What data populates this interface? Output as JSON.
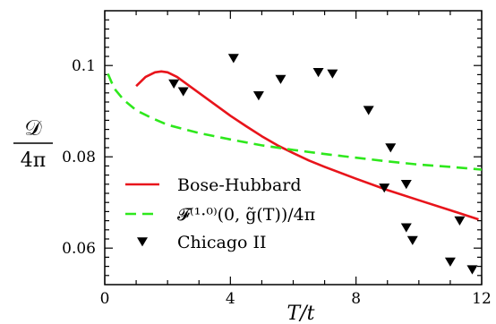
{
  "chart_data": {
    "type": "line",
    "xlabel": "T/t",
    "ylabel_numerator": "𝒟",
    "ylabel_denominator": "4π",
    "xlim": [
      0,
      12
    ],
    "ylim": [
      0.052,
      0.112
    ],
    "x_ticks": [
      0,
      4,
      8,
      12
    ],
    "x_tick_labels": [
      "0",
      "4",
      "8",
      "12"
    ],
    "y_ticks": [
      0.06,
      0.08,
      0.1
    ],
    "y_tick_labels": [
      "0.06",
      "0.08",
      "0.1"
    ],
    "grid": false,
    "legend_position": "bottom-left",
    "series": [
      {
        "name": "Bose-Hubbard",
        "kind": "line",
        "style": "solid",
        "color": "#e8141b",
        "x": [
          1.0,
          1.3,
          1.6,
          1.8,
          2.0,
          2.3,
          2.6,
          3.0,
          3.5,
          4.0,
          4.5,
          5.0,
          5.5,
          6.0,
          6.5,
          7.0,
          8.0,
          9.0,
          10.0,
          11.0,
          11.9
        ],
        "y": [
          0.0955,
          0.0975,
          0.0985,
          0.0987,
          0.0985,
          0.0975,
          0.096,
          0.094,
          0.0915,
          0.089,
          0.0867,
          0.0845,
          0.0825,
          0.0808,
          0.0792,
          0.0778,
          0.0752,
          0.0727,
          0.0705,
          0.0683,
          0.0663
        ]
      },
      {
        "name": "𝓕⁽¹·⁰⁾(0, g̃(T))/4π",
        "kind": "line",
        "style": "dashed",
        "color": "#2ee81c",
        "x": [
          0.1,
          0.3,
          0.6,
          1.0,
          1.5,
          2.0,
          3.0,
          4.0,
          5.0,
          6.0,
          7.0,
          8.0,
          9.0,
          10.0,
          11.0,
          12.0
        ],
        "y": [
          0.0982,
          0.095,
          0.0925,
          0.0902,
          0.0885,
          0.087,
          0.0852,
          0.0838,
          0.0825,
          0.0815,
          0.0806,
          0.0798,
          0.079,
          0.0783,
          0.0778,
          0.0772
        ]
      },
      {
        "name": "Chicago II",
        "kind": "scatter",
        "marker": "triangle-down",
        "color": "#000000",
        "x": [
          2.2,
          2.5,
          4.1,
          4.9,
          5.6,
          6.8,
          7.25,
          8.4,
          8.9,
          9.1,
          9.6,
          9.6,
          9.8,
          11.0,
          11.3,
          11.7
        ],
        "y": [
          0.096,
          0.0943,
          0.1016,
          0.0934,
          0.097,
          0.0985,
          0.0982,
          0.0902,
          0.0732,
          0.082,
          0.074,
          0.0645,
          0.0617,
          0.057,
          0.066,
          0.0553
        ]
      }
    ]
  }
}
